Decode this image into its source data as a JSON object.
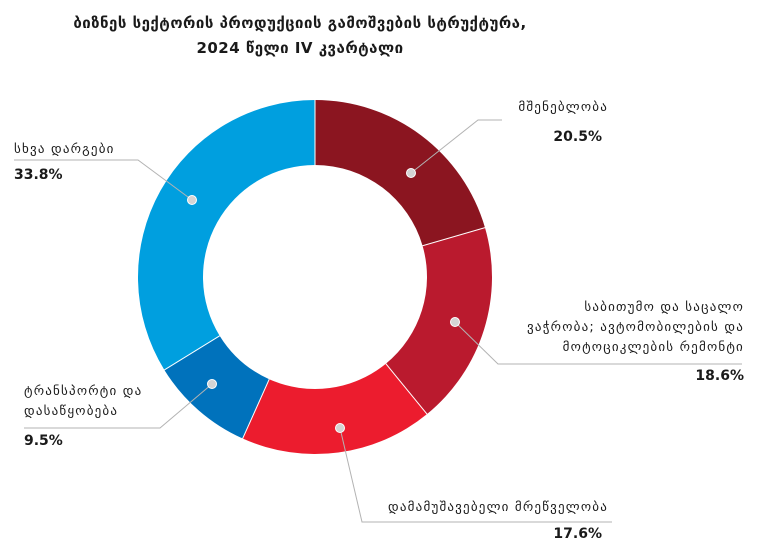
{
  "chart_data": {
    "type": "pie",
    "title": "ბიზნეს სექტორის პროდუქციის გამოშვების სტრუქტურა,",
    "subtitle": "2024 წელი  IV კვარტალი",
    "slices": [
      {
        "label": "მშენებლობა",
        "label_lines": [
          "მშენებლობა"
        ],
        "value": 20.5,
        "value_text": "20.5%",
        "color": "#8B1520"
      },
      {
        "label": "საბითუმო და საცალო ვაჭრობა; ავტომობილების და მოტოციკლების რემონტი",
        "label_lines": [
          "საბითუმო და საცალო",
          "ვაჭრობა; ავტომობილების და",
          "მოტოციკლების რემონტი"
        ],
        "value": 18.6,
        "value_text": "18.6%",
        "color": "#BA1A2E"
      },
      {
        "label": "დამამუშავებელი მრეწველობა",
        "label_lines": [
          "დამამუშავებელი მრეწველობა"
        ],
        "value": 17.6,
        "value_text": "17.6%",
        "color": "#EC1C2E"
      },
      {
        "label": "ტრანსპორტი და დასაწყობება",
        "label_lines": [
          "ტრანსპორტი და",
          "დასაწყობება"
        ],
        "value": 9.5,
        "value_text": "9.5%",
        "color": "#0072BC"
      },
      {
        "label": "სხვა დარგები",
        "label_lines": [
          "სხვა დარგები"
        ],
        "value": 33.8,
        "value_text": "33.8%",
        "color": "#009FDF"
      }
    ]
  }
}
